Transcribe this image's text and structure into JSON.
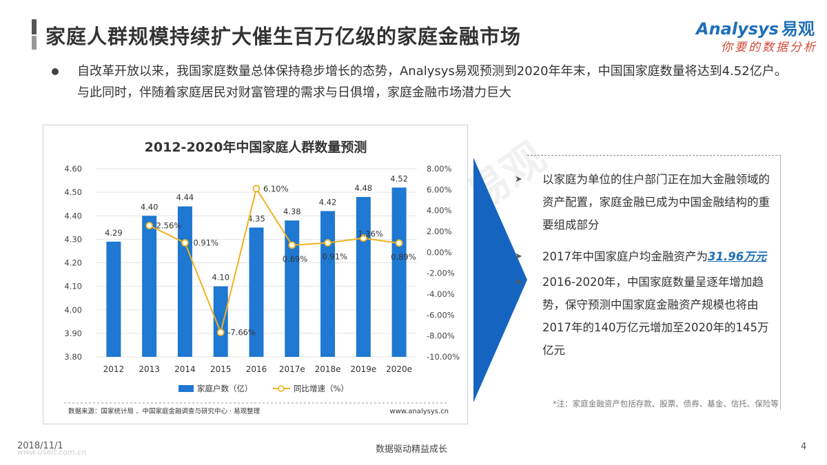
{
  "header": {
    "title": "家庭人群规模持续扩大催生百万亿级的家庭金融市场"
  },
  "logo": {
    "brand_en": "Analysys",
    "brand_cn": "易观",
    "tagline": "你要的数据分析"
  },
  "intro": {
    "text": "自改革开放以来，我国家庭数量总体保持稳步增长的态势，Analysys易观预测到2020年年末，中国国家庭数量将达到4.52亿户。与此同时，伴随着家庭居民对财富管理的需求与日俱增，家庭金融市场潜力巨大"
  },
  "chart_data": {
    "type": "bar",
    "title": "2012-2020年中国家庭人群数量预测",
    "categories": [
      "2012",
      "2013",
      "2014",
      "2015",
      "2016",
      "2017e",
      "2018e",
      "2019e",
      "2020e"
    ],
    "series": [
      {
        "name": "家庭户数（亿）",
        "type": "bar",
        "axis": "left",
        "values": [
          4.29,
          4.4,
          4.44,
          4.1,
          4.35,
          4.38,
          4.42,
          4.48,
          4.52
        ],
        "labels": [
          "4.29",
          "4.40",
          "4.44",
          "4.10",
          "4.35",
          "4.38",
          "4.42",
          "4.48",
          "4.52"
        ],
        "color": "#1f78d1"
      },
      {
        "name": "同比增速（%）",
        "type": "line",
        "axis": "right",
        "values": [
          null,
          2.56,
          0.91,
          -7.66,
          6.1,
          0.69,
          0.91,
          1.36,
          0.89
        ],
        "labels": [
          "",
          "2.56%",
          "0.91%",
          "-7.66%",
          "6.10%",
          "0.69%",
          "0.91%",
          "1.36%",
          "0.89%"
        ],
        "color": "#f2b01e"
      }
    ],
    "y_left": {
      "range": [
        3.8,
        4.6
      ],
      "ticks": [
        "4.60",
        "4.50",
        "4.40",
        "4.30",
        "4.20",
        "4.10",
        "4.00",
        "3.90",
        "3.80"
      ]
    },
    "y_right": {
      "range": [
        -10,
        8
      ],
      "ticks": [
        "8.00%",
        "6.00%",
        "4.00%",
        "2.00%",
        "0.00%",
        "-2.00%",
        "-4.00%",
        "-6.00%",
        "-8.00%",
        "-10.00%"
      ]
    },
    "grid": true,
    "legend_position": "bottom",
    "source": "数据来源：国家统计局 、中国家庭金融调查与研究中心 · 易观整理",
    "site": "www.analysys.cn"
  },
  "panel": {
    "items": [
      {
        "text": "以家庭为单位的住户部门正在加大金融领域的资产配置，家庭金融已成为中国金融结构的重要组成部分"
      },
      {
        "text_before": "2017年中国家庭户均金融资产为",
        "highlight": "31.96万元"
      },
      {
        "text": "2016-2020年，中国家庭数量呈逐年增加趋势，保守预测中国家庭金融资产规模也将由2017年的140万亿元增加至2020年的145万亿元"
      }
    ],
    "footnote": "*注：家庭金融资产包括存款、股票、债券、基金、信托、保险等"
  },
  "footer": {
    "date": "2018/11/1",
    "site": "www.useit.com.cn",
    "center": "数据驱动精益成长",
    "page": "4"
  },
  "colors": {
    "bar": "#1f78d1",
    "line": "#f2b01e",
    "accent_blue": "#1f6fb8",
    "arrow_blue": "#1565c0"
  }
}
